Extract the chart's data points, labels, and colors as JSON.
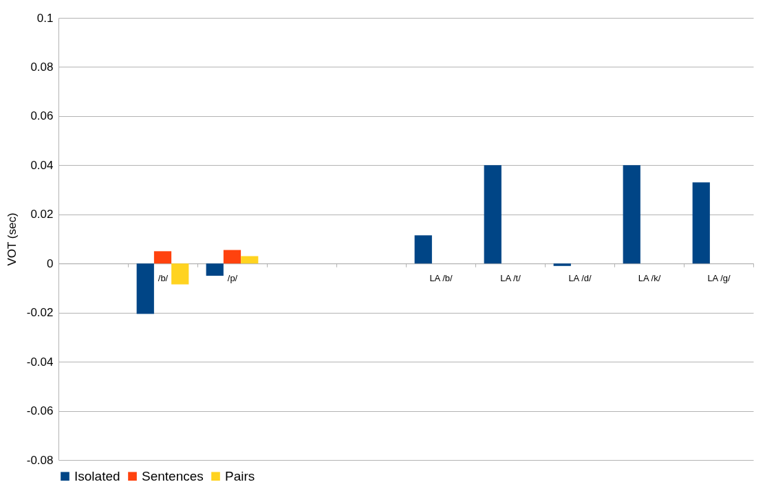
{
  "chart_data": {
    "type": "bar",
    "ylabel": "VOT (sec)",
    "categories": [
      null,
      "/b/",
      "/p/",
      null,
      null,
      "LA /b/",
      "LA /t/",
      "LA /d/",
      "LA /k/",
      "LA /g/"
    ],
    "series": [
      {
        "name": "Isolated",
        "color": "#004586",
        "values": [
          null,
          -0.0205,
          -0.005,
          null,
          null,
          0.0115,
          0.04,
          -0.001,
          0.04,
          0.033
        ]
      },
      {
        "name": "Sentences",
        "color": "#ff420e",
        "values": [
          null,
          0.005,
          0.0055,
          null,
          null,
          null,
          null,
          null,
          null,
          null
        ]
      },
      {
        "name": "Pairs",
        "color": "#ffd320",
        "values": [
          null,
          -0.0085,
          0.003,
          null,
          null,
          null,
          null,
          null,
          null,
          null
        ]
      }
    ],
    "ylim": [
      -0.08,
      0.1
    ],
    "yticks": [
      -0.08,
      -0.06,
      -0.04,
      -0.02,
      0,
      0.02,
      0.04,
      0.06,
      0.08,
      0.1
    ],
    "grid": "y",
    "legend": "bottom"
  }
}
